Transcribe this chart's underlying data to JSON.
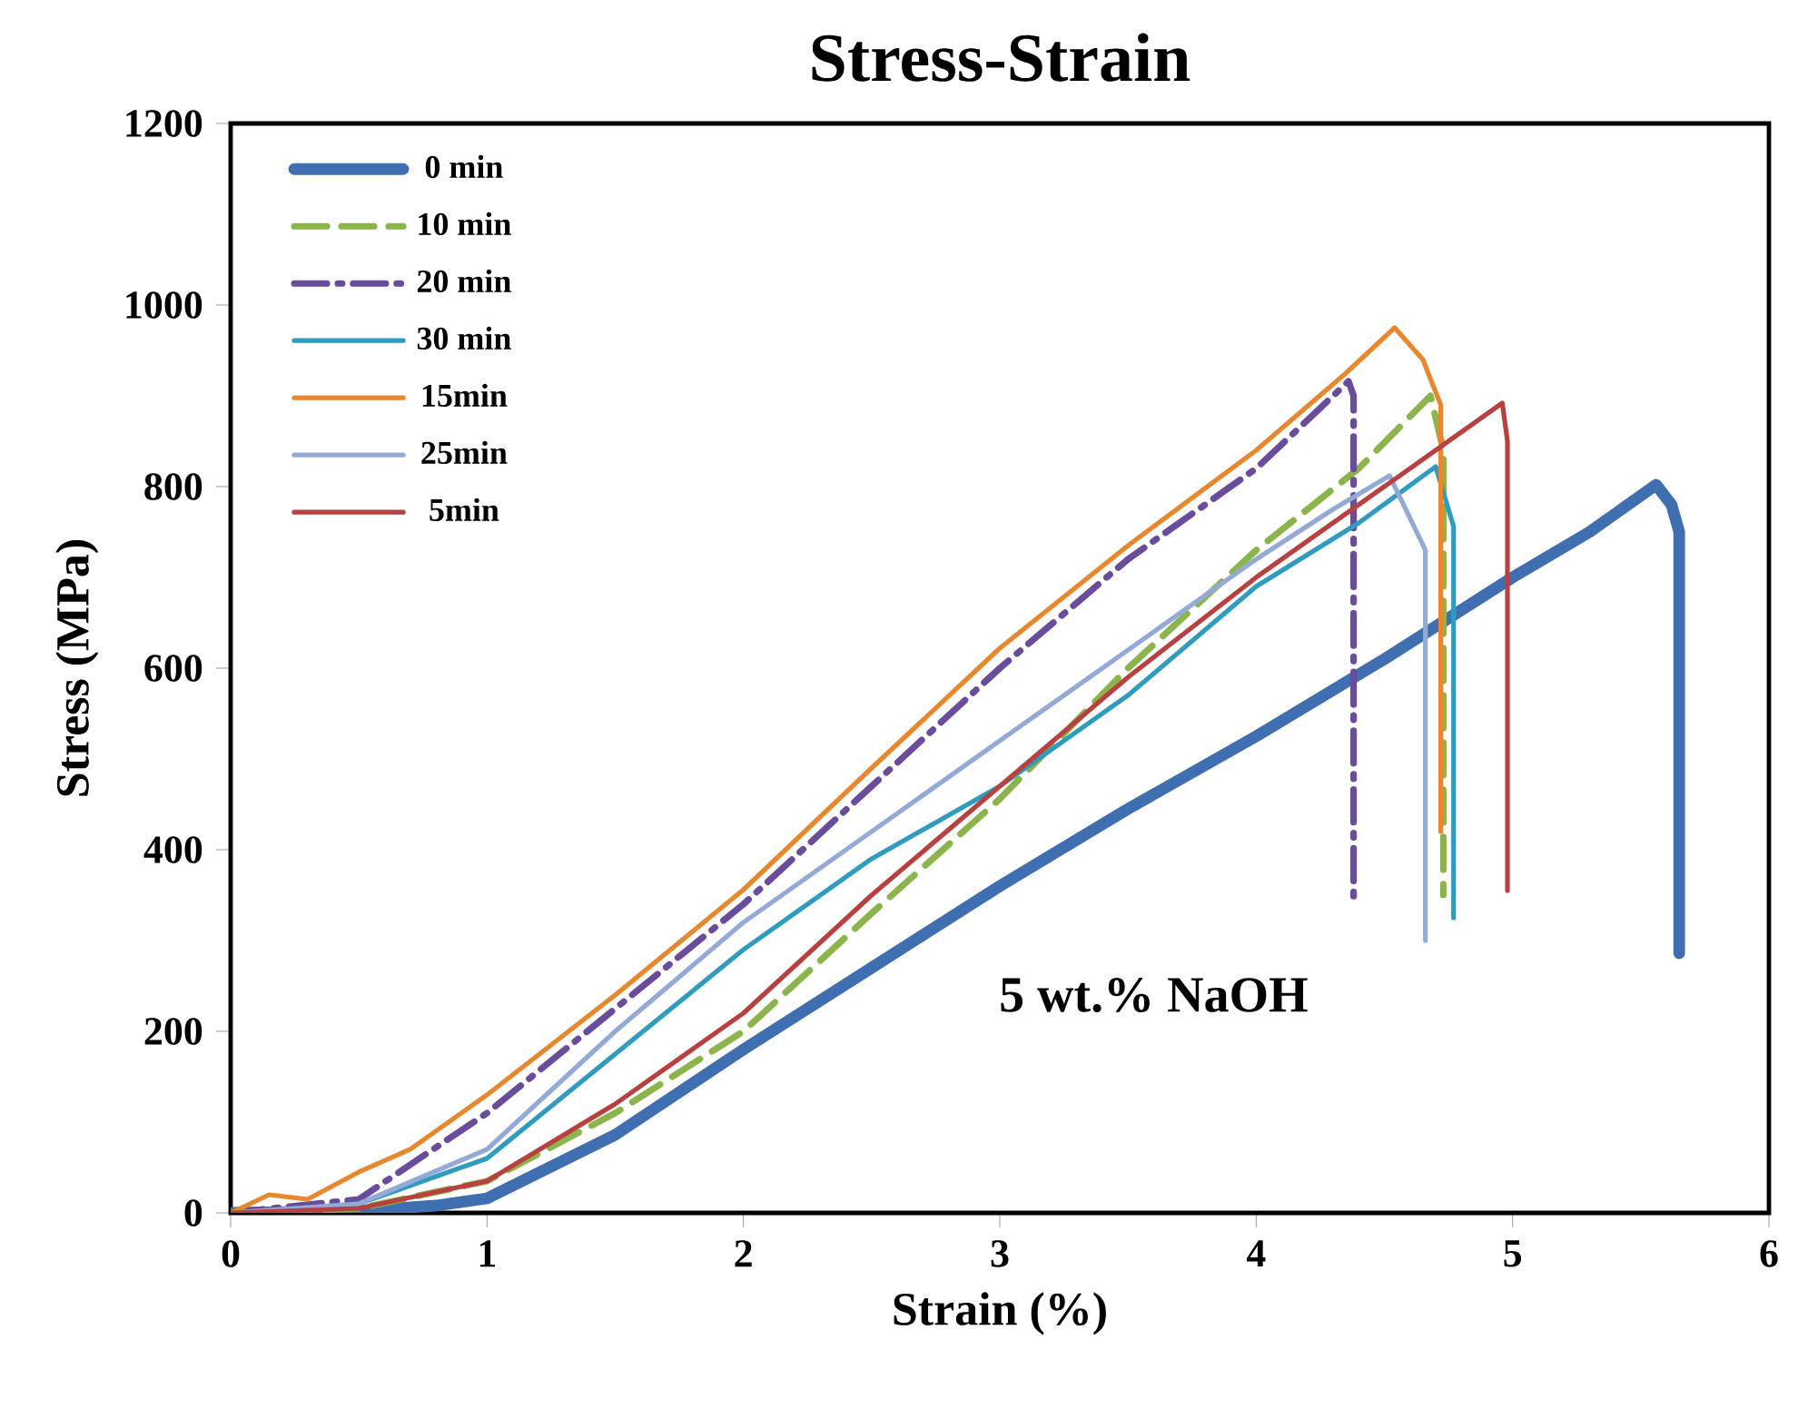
{
  "chart_data": {
    "type": "line",
    "title": "Stress-Strain",
    "xlabel": "Strain (%)",
    "ylabel": "Stress (MPa)",
    "xlim": [
      0,
      6
    ],
    "ylim": [
      0,
      1200
    ],
    "xticks": [
      0,
      1,
      2,
      3,
      4,
      5,
      6
    ],
    "yticks": [
      0,
      200,
      400,
      600,
      800,
      1000,
      1200
    ],
    "grid": false,
    "legend": "top left",
    "marker": "none",
    "annotations": [
      "5 wt.% NaOH"
    ],
    "series": [
      {
        "name": "0 min",
        "color": "#3f6fb0",
        "line_style": "solid",
        "x": [
          0,
          0.5,
          0.8,
          1,
          1.5,
          2,
          2.5,
          3,
          3.5,
          4,
          4.5,
          5,
          5.3,
          5.56,
          5.62,
          5.65,
          5.65
        ],
        "values": [
          0,
          2,
          8,
          16,
          86,
          180,
          270,
          360,
          445,
          525,
          610,
          700,
          750,
          802,
          780,
          750,
          286
        ]
      },
      {
        "name": "10 min",
        "color": "#8bb54a",
        "line_style": "dashed",
        "x": [
          0,
          0.5,
          1,
          1.5,
          2,
          2.5,
          3,
          3.5,
          4,
          4.4,
          4.68,
          4.73,
          4.73
        ],
        "values": [
          0,
          5,
          35,
          110,
          200,
          330,
          456,
          600,
          730,
          820,
          900,
          840,
          350
        ]
      },
      {
        "name": "20 min",
        "color": "#6a4c9c",
        "line_style": "dashdot",
        "x": [
          0,
          0.5,
          1,
          1.5,
          2,
          2.5,
          3,
          3.5,
          4,
          4.36,
          4.38,
          4.38
        ],
        "values": [
          0,
          15,
          110,
          225,
          340,
          470,
          600,
          720,
          820,
          916,
          900,
          340
        ]
      },
      {
        "name": "30 min",
        "color": "#2f9bbf",
        "line_style": "solid",
        "x": [
          0,
          0.5,
          1,
          1.5,
          2,
          2.5,
          3,
          3.5,
          4,
          4.4,
          4.7,
          4.77,
          4.77
        ],
        "values": [
          0,
          10,
          60,
          175,
          290,
          390,
          470,
          570,
          690,
          760,
          822,
          756,
          325
        ]
      },
      {
        "name": "15min",
        "color": "#e8882e",
        "line_style": "solid",
        "x": [
          0,
          0.15,
          0.3,
          0.5,
          0.7,
          1,
          1.5,
          2,
          2.5,
          3,
          3.5,
          4,
          4.35,
          4.54,
          4.65,
          4.72,
          4.72
        ],
        "values": [
          0,
          20,
          15,
          45,
          70,
          130,
          240,
          356,
          490,
          622,
          735,
          840,
          925,
          975,
          940,
          890,
          420
        ]
      },
      {
        "name": "25min",
        "color": "#94aad6",
        "line_style": "solid",
        "x": [
          0,
          0.5,
          1,
          1.5,
          2,
          2.5,
          3,
          3.5,
          4,
          4.3,
          4.52,
          4.66,
          4.66
        ],
        "values": [
          0,
          10,
          70,
          200,
          320,
          420,
          520,
          620,
          720,
          775,
          812,
          730,
          300
        ]
      },
      {
        "name": "5min",
        "color": "#b84040",
        "line_style": "solid",
        "x": [
          0,
          0.5,
          1,
          1.5,
          2,
          2.5,
          3,
          3.5,
          4,
          4.5,
          4.96,
          4.98,
          4.98
        ],
        "values": [
          0,
          5,
          35,
          120,
          220,
          350,
          470,
          590,
          700,
          800,
          892,
          850,
          355
        ]
      }
    ]
  }
}
